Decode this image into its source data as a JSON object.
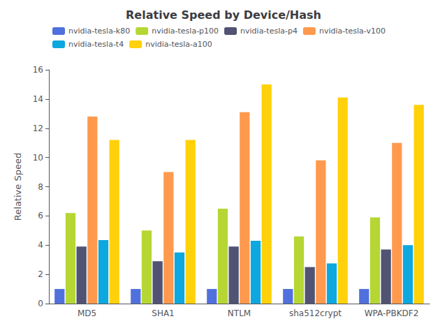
{
  "chart_data": {
    "type": "bar",
    "title": "Relative Speed by Device/Hash",
    "ylabel": "Relative Speed",
    "categories": [
      "MD5",
      "SHA1",
      "NTLM",
      "sha512crypt",
      "WPA-PBKDF2"
    ],
    "series": [
      {
        "name": "nvidia-tesla-k80",
        "values": [
          1.0,
          1.0,
          1.0,
          1.0,
          1.0
        ]
      },
      {
        "name": "nvidia-tesla-p100",
        "values": [
          6.2,
          5.0,
          6.5,
          4.6,
          5.9
        ]
      },
      {
        "name": "nvidia-tesla-p4",
        "values": [
          3.9,
          2.9,
          3.9,
          2.5,
          3.7
        ]
      },
      {
        "name": "nvidia-tesla-v100",
        "values": [
          12.8,
          9.0,
          13.1,
          9.8,
          11.0
        ]
      },
      {
        "name": "nvidia-tesla-t4",
        "values": [
          4.35,
          3.5,
          4.3,
          2.75,
          4.0
        ]
      },
      {
        "name": "nvidia-tesla-a100",
        "values": [
          11.2,
          11.2,
          15.0,
          14.1,
          13.6
        ]
      }
    ],
    "ylim": [
      0,
      16
    ],
    "yticks": [
      0,
      2,
      4,
      6,
      8,
      10,
      12,
      14,
      16
    ],
    "grid": false,
    "legend": "upper left"
  }
}
